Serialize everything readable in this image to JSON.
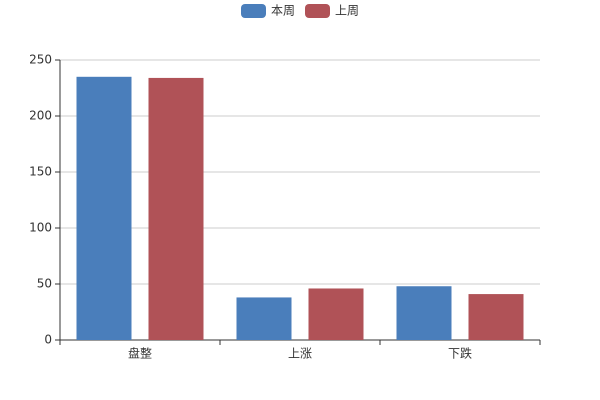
{
  "chart_data": {
    "type": "bar",
    "categories": [
      "盘整",
      "上涨",
      "下跌"
    ],
    "series": [
      {
        "name": "本周",
        "color": "#4a7ebb",
        "values": [
          235,
          38,
          48
        ]
      },
      {
        "name": "上周",
        "color": "#b05257",
        "values": [
          234,
          46,
          41
        ]
      }
    ],
    "ylim": [
      0,
      250
    ],
    "yticks": [
      0,
      50,
      100,
      150,
      200,
      250
    ],
    "grid": true,
    "legend": "top"
  }
}
